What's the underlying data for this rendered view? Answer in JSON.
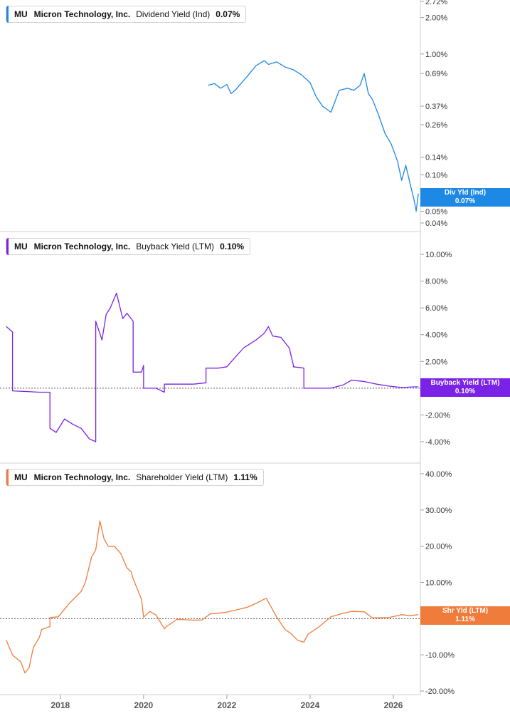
{
  "chart_data": [
    {
      "type": "line",
      "scale": "log",
      "legend": {
        "ticker": "MU",
        "company": "Micron Technology, Inc.",
        "metric": "Dividend Yield (Ind)",
        "value": "0.07%"
      },
      "flag": {
        "label": "Div Yld (Ind)",
        "value": "0.07%"
      },
      "color": "#1e88e5",
      "yticks": [
        {
          "v": 2.72,
          "label": "2.72%"
        },
        {
          "v": 2.0,
          "label": "2.00%"
        },
        {
          "v": 1.0,
          "label": "1.00%"
        },
        {
          "v": 0.69,
          "label": "0.69%"
        },
        {
          "v": 0.37,
          "label": "0.37%"
        },
        {
          "v": 0.26,
          "label": "0.26%"
        },
        {
          "v": 0.14,
          "label": "0.14%"
        },
        {
          "v": 0.1,
          "label": "0.10%"
        },
        {
          "v": 0.05,
          "label": "0.05%"
        },
        {
          "v": 0.04,
          "label": "0.04%"
        }
      ],
      "series": [
        {
          "x": [
            2021.55,
            2021.7,
            2021.85,
            2022.0,
            2022.1,
            2022.2,
            2022.3,
            2022.5,
            2022.7,
            2022.9,
            2023.0,
            2023.2,
            2023.4,
            2023.6,
            2023.8,
            2024.0,
            2024.15,
            2024.3,
            2024.5,
            2024.7,
            2024.9,
            2025.05,
            2025.2,
            2025.3,
            2025.4,
            2025.5,
            2025.65,
            2025.8,
            2025.95,
            2026.1,
            2026.2,
            2026.3,
            2026.4,
            2026.5,
            2026.55,
            2026.6
          ],
          "y": [
            0.55,
            0.57,
            0.52,
            0.56,
            0.47,
            0.5,
            0.55,
            0.66,
            0.8,
            0.88,
            0.82,
            0.86,
            0.78,
            0.74,
            0.67,
            0.58,
            0.44,
            0.37,
            0.33,
            0.5,
            0.52,
            0.5,
            0.55,
            0.69,
            0.47,
            0.42,
            0.31,
            0.22,
            0.18,
            0.13,
            0.09,
            0.12,
            0.085,
            0.062,
            0.05,
            0.07
          ]
        }
      ]
    },
    {
      "type": "line",
      "legend": {
        "ticker": "MU",
        "company": "Micron Technology, Inc.",
        "metric": "Buyback Yield (LTM)",
        "value": "0.10%"
      },
      "flag": {
        "label": "Buyback Yield (LTM)",
        "value": "0.10%"
      },
      "color": "#7a22e6",
      "ylim": [
        -4,
        10
      ],
      "yticks": [
        {
          "v": 10,
          "label": "10.00%"
        },
        {
          "v": 8,
          "label": "8.00%"
        },
        {
          "v": 6,
          "label": "6.00%"
        },
        {
          "v": 4,
          "label": "4.00%"
        },
        {
          "v": 2,
          "label": "2.00%"
        },
        {
          "v": -2,
          "label": "-2.00%"
        },
        {
          "v": -4,
          "label": "-4.00%"
        }
      ],
      "series": [
        {
          "x": [
            2016.7,
            2016.85,
            2016.85,
            2017.2,
            2017.5,
            2017.75,
            2017.75,
            2017.9,
            2018.1,
            2018.3,
            2018.5,
            2018.7,
            2018.85,
            2018.85,
            2019.0,
            2019.1,
            2019.2,
            2019.35,
            2019.5,
            2019.6,
            2019.75,
            2019.75,
            2019.95,
            2020.0,
            2020.0,
            2020.3,
            2020.5,
            2020.5,
            2020.8,
            2021.2,
            2021.5,
            2021.5,
            2021.8,
            2022.0,
            2022.2,
            2022.4,
            2022.5,
            2022.7,
            2022.9,
            2023.0,
            2023.1,
            2023.3,
            2023.5,
            2023.6,
            2023.6,
            2023.85,
            2023.85,
            2024.0,
            2024.5,
            2024.8,
            2025.0,
            2025.3,
            2025.6,
            2025.9,
            2026.2,
            2026.5,
            2026.6
          ],
          "y": [
            4.6,
            4.2,
            -0.2,
            -0.25,
            -0.3,
            -0.3,
            -3.0,
            -3.3,
            -2.3,
            -2.7,
            -3.0,
            -3.8,
            -4.0,
            5.0,
            3.6,
            5.5,
            6.0,
            7.1,
            5.2,
            5.6,
            5.0,
            1.2,
            1.2,
            1.7,
            0.0,
            0.0,
            -0.3,
            0.3,
            0.3,
            0.3,
            0.4,
            1.5,
            1.5,
            1.6,
            2.3,
            3.0,
            3.2,
            3.6,
            4.1,
            4.6,
            3.9,
            3.8,
            3.0,
            1.7,
            1.6,
            1.5,
            0.0,
            0.0,
            0.0,
            0.25,
            0.6,
            0.5,
            0.3,
            0.15,
            0.05,
            0.1,
            0.1
          ]
        }
      ]
    },
    {
      "type": "line",
      "legend": {
        "ticker": "MU",
        "company": "Micron Technology, Inc.",
        "metric": "Shareholder Yield (LTM)",
        "value": "1.11%"
      },
      "flag": {
        "label": "Shr Yld (LTM)",
        "value": "1.11%"
      },
      "color": "#f07c3c",
      "ylim": [
        -20,
        40
      ],
      "yticks": [
        {
          "v": 40,
          "label": "40.00%"
        },
        {
          "v": 30,
          "label": "30.00%"
        },
        {
          "v": 20,
          "label": "20.00%"
        },
        {
          "v": 10,
          "label": "10.00%"
        },
        {
          "v": -10,
          "label": "-10.00%"
        },
        {
          "v": -20,
          "label": "-20.00%"
        }
      ],
      "series": [
        {
          "x": [
            2016.7,
            2016.85,
            2016.95,
            2017.05,
            2017.15,
            2017.25,
            2017.35,
            2017.5,
            2017.55,
            2017.75,
            2017.75,
            2017.95,
            2018.2,
            2018.5,
            2018.6,
            2018.75,
            2018.85,
            2018.95,
            2019.05,
            2019.15,
            2019.3,
            2019.45,
            2019.6,
            2019.7,
            2019.75,
            2019.95,
            2020.0,
            2020.15,
            2020.3,
            2020.5,
            2020.55,
            2020.8,
            2021.2,
            2021.4,
            2021.6,
            2021.8,
            2022.0,
            2022.3,
            2022.5,
            2022.7,
            2022.9,
            2022.95,
            2023.2,
            2023.4,
            2023.55,
            2023.7,
            2023.85,
            2023.95,
            2024.2,
            2024.5,
            2024.8,
            2025.0,
            2025.3,
            2025.5,
            2025.9,
            2026.2,
            2026.4,
            2026.6
          ],
          "y": [
            -6,
            -10,
            -11,
            -12,
            -15,
            -13.5,
            -8,
            -5,
            -3,
            -2.2,
            0.3,
            0.5,
            4,
            7.5,
            10,
            17,
            19,
            27,
            22,
            20,
            20,
            18,
            14,
            13,
            11,
            5.3,
            0.4,
            2,
            1,
            -2.8,
            -2.2,
            -0.2,
            -0.4,
            -0.4,
            1.3,
            1.5,
            1.8,
            2.6,
            3.2,
            4.2,
            5.4,
            5.6,
            0.4,
            -3,
            -4.2,
            -6,
            -6.5,
            -4.3,
            -2.4,
            0.5,
            1.5,
            2.0,
            1.9,
            0.2,
            0.3,
            1.1,
            0.8,
            1.11
          ]
        }
      ]
    }
  ],
  "x_axis": {
    "range": [
      2016.55,
      2026.65
    ],
    "ticks": [
      "2018",
      "2020",
      "2022",
      "2024",
      "2026"
    ]
  }
}
